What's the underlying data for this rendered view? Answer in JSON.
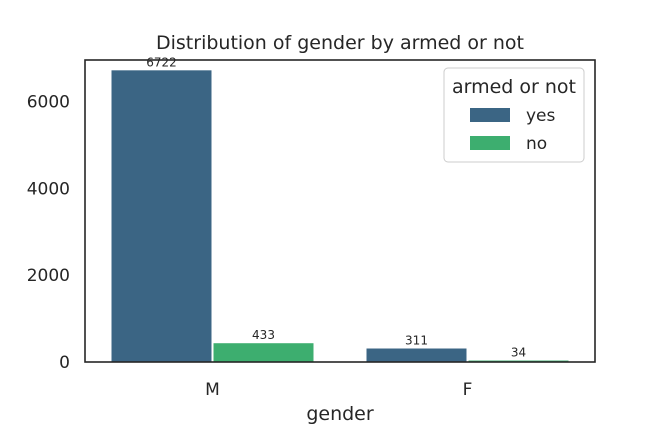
{
  "chart_data": {
    "type": "bar",
    "title": "Distribution of gender by armed or not",
    "xlabel": "gender",
    "ylabel": "",
    "categories": [
      "M",
      "F"
    ],
    "series": [
      {
        "name": "yes",
        "values": [
          6722,
          311
        ],
        "color": "#3b6584"
      },
      {
        "name": "no",
        "values": [
          433,
          34
        ],
        "color": "#3dae6f"
      }
    ],
    "ylim": [
      0,
      6960
    ],
    "yticks": [
      0,
      2000,
      4000,
      6000
    ],
    "grid": false,
    "legend": {
      "title": "armed or not",
      "position": "top-right"
    }
  }
}
